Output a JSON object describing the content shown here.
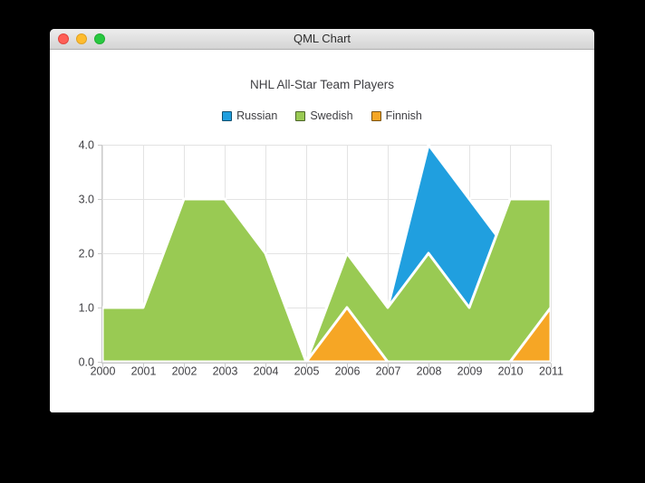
{
  "window": {
    "title": "QML Chart"
  },
  "chart": {
    "title": "NHL All-Star Team Players",
    "legend": [
      {
        "label": "Russian",
        "color": "#209fdf"
      },
      {
        "label": "Swedish",
        "color": "#99ca53"
      },
      {
        "label": "Finnish",
        "color": "#f6a625"
      }
    ]
  },
  "chart_data": {
    "type": "area",
    "title": "NHL All-Star Team Players",
    "x": [
      2000,
      2001,
      2002,
      2003,
      2004,
      2005,
      2006,
      2007,
      2008,
      2009,
      2010,
      2011
    ],
    "series": [
      {
        "name": "Russian",
        "color": "#209fdf",
        "values": [
          1,
          1,
          1,
          1,
          1,
          0,
          1,
          1,
          4,
          3,
          2,
          1
        ]
      },
      {
        "name": "Swedish",
        "color": "#99ca53",
        "values": [
          1,
          1,
          3,
          3,
          2,
          0,
          2,
          1,
          2,
          1,
          3,
          3
        ]
      },
      {
        "name": "Finnish",
        "color": "#f6a625",
        "values": [
          0,
          0,
          0,
          0,
          0,
          0,
          1,
          0,
          0,
          0,
          0,
          1
        ]
      }
    ],
    "xlim": [
      2000,
      2011
    ],
    "ylim": [
      0,
      4
    ],
    "x_ticks": [
      "2000",
      "2001",
      "2002",
      "2003",
      "2004",
      "2005",
      "2006",
      "2007",
      "2008",
      "2009",
      "2010",
      "2011"
    ],
    "y_ticks": [
      "0.0",
      "1.0",
      "2.0",
      "3.0",
      "4.0"
    ],
    "grid": true,
    "legend_position": "top",
    "series_border_color": "#ffffff",
    "grid_color": "#e3e3e3",
    "axis_color": "#c9c9c9",
    "label_color": "#404044"
  }
}
